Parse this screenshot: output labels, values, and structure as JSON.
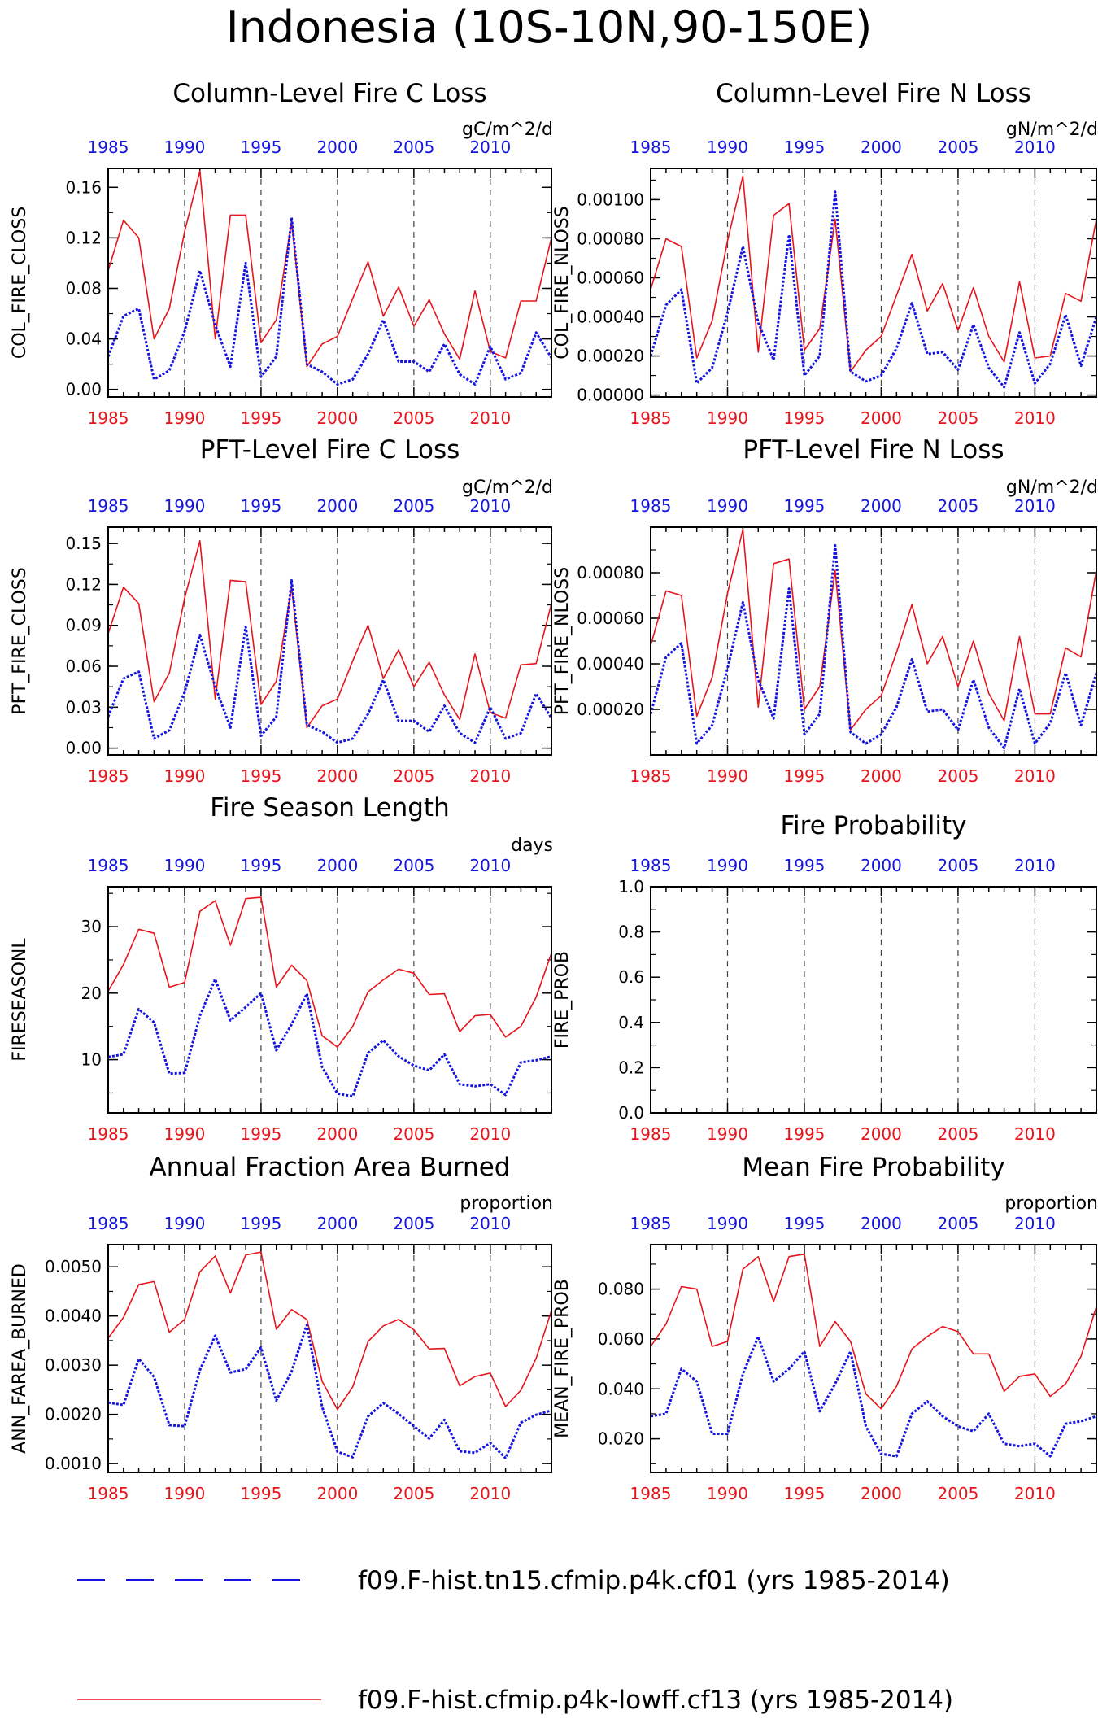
{
  "title": "Indonesia (10S-10N,90-150E)",
  "colors": {
    "red": "#e8141b",
    "blue": "#1515e0",
    "axis": "#000000",
    "grid": "#444444"
  },
  "legend": [
    {
      "label": "f09.F-hist.tn15.cfmip.p4k.cf01 (yrs 1985-2014)",
      "color": "#1515e0",
      "style": "dashed"
    },
    {
      "label": "f09.F-hist.cfmip.p4k-lowff.cf13 (yrs 1985-2014)",
      "color": "#e8141b",
      "style": "solid"
    }
  ],
  "chart_data": [
    {
      "type": "line",
      "title": "Column-Level Fire C Loss",
      "ylabel": "COL_FIRE_CLOSS",
      "units": "gC/m^2/d",
      "xlim": [
        1985,
        2014
      ],
      "xticks": [
        1985,
        1990,
        1995,
        2000,
        2005,
        2010
      ],
      "ylim": [
        -0.006,
        0.175
      ],
      "yticks": [
        "0.00",
        "0.04",
        "0.08",
        "0.12",
        "0.16"
      ],
      "ytick_values": [
        0.0,
        0.04,
        0.08,
        0.12,
        0.16
      ],
      "x": [
        1985,
        1986,
        1987,
        1988,
        1989,
        1990,
        1991,
        1992,
        1993,
        1994,
        1995,
        1996,
        1997,
        1998,
        1999,
        2000,
        2001,
        2002,
        2003,
        2004,
        2005,
        2006,
        2007,
        2008,
        2009,
        2010,
        2011,
        2012,
        2013,
        2014
      ],
      "series": [
        {
          "color": "red",
          "style": "solid",
          "values": [
            0.094,
            0.134,
            0.12,
            0.04,
            0.064,
            0.125,
            0.173,
            0.04,
            0.138,
            0.138,
            0.037,
            0.055,
            0.133,
            0.018,
            0.036,
            0.042,
            0.072,
            0.101,
            0.058,
            0.081,
            0.05,
            0.071,
            0.044,
            0.024,
            0.078,
            0.03,
            0.025,
            0.07,
            0.07,
            0.12
          ]
        },
        {
          "color": "blue",
          "style": "dashed",
          "values": [
            0.026,
            0.058,
            0.064,
            0.008,
            0.015,
            0.046,
            0.094,
            0.051,
            0.018,
            0.1,
            0.01,
            0.026,
            0.136,
            0.02,
            0.014,
            0.004,
            0.008,
            0.028,
            0.055,
            0.022,
            0.022,
            0.014,
            0.036,
            0.012,
            0.004,
            0.034,
            0.008,
            0.013,
            0.045,
            0.025
          ]
        }
      ]
    },
    {
      "type": "line",
      "title": "Column-Level Fire N Loss",
      "ylabel": "COL_FIRE_NLOSS",
      "units": "gN/m^2/d",
      "xlim": [
        1985,
        2014
      ],
      "xticks": [
        1985,
        1990,
        1995,
        2000,
        2005,
        2010
      ],
      "ylim": [
        -1e-05,
        0.00116
      ],
      "yticks": [
        "0.00000",
        "0.00020",
        "0.00040",
        "0.00060",
        "0.00080",
        "0.00100"
      ],
      "ytick_values": [
        0.0,
        0.0002,
        0.0004,
        0.0006,
        0.0008,
        0.001
      ],
      "x": [
        1985,
        1986,
        1987,
        1988,
        1989,
        1990,
        1991,
        1992,
        1993,
        1994,
        1995,
        1996,
        1997,
        1998,
        1999,
        2000,
        2001,
        2002,
        2003,
        2004,
        2005,
        2006,
        2007,
        2008,
        2009,
        2010,
        2011,
        2012,
        2013,
        2014
      ],
      "series": [
        {
          "color": "red",
          "style": "solid",
          "values": [
            0.00054,
            0.0008,
            0.00076,
            0.00019,
            0.00038,
            0.00079,
            0.00112,
            0.00022,
            0.00092,
            0.00098,
            0.00023,
            0.00034,
            0.0009,
            0.00012,
            0.00023,
            0.0003,
            0.00051,
            0.00072,
            0.00043,
            0.00057,
            0.00033,
            0.00055,
            0.0003,
            0.00017,
            0.00058,
            0.00019,
            0.0002,
            0.00052,
            0.00048,
            0.0009
          ]
        },
        {
          "color": "blue",
          "style": "dashed",
          "values": [
            0.0002,
            0.00046,
            0.00054,
            6e-05,
            0.00014,
            0.00042,
            0.00076,
            0.00037,
            0.00018,
            0.00082,
            0.0001,
            0.0002,
            0.00104,
            0.00012,
            7e-05,
            0.0001,
            0.00024,
            0.00047,
            0.00021,
            0.00022,
            0.00013,
            0.00036,
            0.00014,
            4e-05,
            0.00032,
            6e-05,
            0.00016,
            0.00041,
            0.00015,
            0.0004
          ]
        }
      ]
    },
    {
      "type": "line",
      "title": "PFT-Level Fire C Loss",
      "ylabel": "PFT_FIRE_CLOSS",
      "units": "gC/m^2/d",
      "xlim": [
        1985,
        2014
      ],
      "xticks": [
        1985,
        1990,
        1995,
        2000,
        2005,
        2010
      ],
      "ylim": [
        -0.005,
        0.162
      ],
      "yticks": [
        "0.00",
        "0.03",
        "0.06",
        "0.09",
        "0.12",
        "0.15"
      ],
      "ytick_values": [
        0.0,
        0.03,
        0.06,
        0.09,
        0.12,
        0.15
      ],
      "x": [
        1985,
        1986,
        1987,
        1988,
        1989,
        1990,
        1991,
        1992,
        1993,
        1994,
        1995,
        1996,
        1997,
        1998,
        1999,
        2000,
        2001,
        2002,
        2003,
        2004,
        2005,
        2006,
        2007,
        2008,
        2009,
        2010,
        2011,
        2012,
        2013,
        2014
      ],
      "series": [
        {
          "color": "red",
          "style": "solid",
          "values": [
            0.084,
            0.118,
            0.106,
            0.034,
            0.055,
            0.11,
            0.152,
            0.036,
            0.123,
            0.122,
            0.032,
            0.049,
            0.118,
            0.015,
            0.031,
            0.036,
            0.064,
            0.09,
            0.051,
            0.072,
            0.045,
            0.063,
            0.039,
            0.021,
            0.069,
            0.026,
            0.022,
            0.061,
            0.062,
            0.106
          ]
        },
        {
          "color": "blue",
          "style": "dashed",
          "values": [
            0.023,
            0.051,
            0.056,
            0.007,
            0.013,
            0.041,
            0.083,
            0.045,
            0.015,
            0.089,
            0.009,
            0.023,
            0.123,
            0.017,
            0.012,
            0.004,
            0.007,
            0.025,
            0.05,
            0.02,
            0.02,
            0.012,
            0.031,
            0.011,
            0.004,
            0.03,
            0.007,
            0.011,
            0.04,
            0.022
          ]
        }
      ]
    },
    {
      "type": "line",
      "title": "PFT-Level Fire N Loss",
      "ylabel": "PFT_FIRE_NLOSS",
      "units": "gN/m^2/d",
      "xlim": [
        1985,
        2014
      ],
      "xticks": [
        1985,
        1990,
        1995,
        2000,
        2005,
        2010
      ],
      "ylim": [
        0.0,
        0.001
      ],
      "yticks": [
        "0.00020",
        "0.00040",
        "0.00060",
        "0.00080"
      ],
      "ytick_values": [
        0.0002,
        0.0004,
        0.0006,
        0.0008
      ],
      "x": [
        1985,
        1986,
        1987,
        1988,
        1989,
        1990,
        1991,
        1992,
        1993,
        1994,
        1995,
        1996,
        1997,
        1998,
        1999,
        2000,
        2001,
        2002,
        2003,
        2004,
        2005,
        2006,
        2007,
        2008,
        2009,
        2010,
        2011,
        2012,
        2013,
        2014
      ],
      "series": [
        {
          "color": "red",
          "style": "solid",
          "values": [
            0.00048,
            0.00072,
            0.0007,
            0.00017,
            0.00034,
            0.00071,
            0.00099,
            0.00021,
            0.00084,
            0.00086,
            0.0002,
            0.0003,
            0.00081,
            0.00011,
            0.0002,
            0.00026,
            0.00045,
            0.00066,
            0.0004,
            0.00052,
            0.0003,
            0.0005,
            0.00027,
            0.00015,
            0.00052,
            0.00018,
            0.00018,
            0.00047,
            0.00043,
            0.00081
          ]
        },
        {
          "color": "blue",
          "style": "dashed",
          "values": [
            0.00018,
            0.00043,
            0.00049,
            5e-05,
            0.00013,
            0.00038,
            0.00067,
            0.00033,
            0.00016,
            0.00073,
            9e-05,
            0.00018,
            0.00092,
            0.0001,
            5e-05,
            9e-05,
            0.00021,
            0.00042,
            0.00019,
            0.0002,
            0.00011,
            0.00033,
            0.00012,
            3e-05,
            0.00029,
            5e-05,
            0.00014,
            0.00036,
            0.00013,
            0.00036
          ]
        }
      ]
    },
    {
      "type": "line",
      "title": "Fire Season Length",
      "ylabel": "FIRESEASONL",
      "units": "days",
      "xlim": [
        1985,
        2014
      ],
      "xticks": [
        1985,
        1990,
        1995,
        2000,
        2005,
        2010
      ],
      "ylim": [
        2.0,
        36.0
      ],
      "yticks": [
        "10",
        "20",
        "30"
      ],
      "ytick_values": [
        10,
        20,
        30
      ],
      "x": [
        1985,
        1986,
        1987,
        1988,
        1989,
        1990,
        1991,
        1992,
        1993,
        1994,
        1995,
        1996,
        1997,
        1998,
        1999,
        2000,
        2001,
        2002,
        2003,
        2004,
        2005,
        2006,
        2007,
        2008,
        2009,
        2010,
        2011,
        2012,
        2013,
        2014
      ],
      "series": [
        {
          "color": "red",
          "style": "solid",
          "values": [
            20.3,
            24.3,
            29.6,
            29.0,
            20.9,
            21.6,
            32.3,
            33.9,
            27.2,
            34.2,
            34.4,
            20.9,
            24.2,
            21.9,
            13.6,
            11.9,
            15.0,
            20.2,
            22.0,
            23.6,
            23.0,
            19.8,
            19.9,
            14.2,
            16.6,
            16.8,
            13.4,
            15.0,
            19.4,
            26.0
          ]
        },
        {
          "color": "blue",
          "style": "dashed",
          "values": [
            10.4,
            10.8,
            17.6,
            15.6,
            7.9,
            8.0,
            16.6,
            22.1,
            15.9,
            17.9,
            20.0,
            11.4,
            15.3,
            19.9,
            8.9,
            4.9,
            4.5,
            11.0,
            12.9,
            10.5,
            9.1,
            8.4,
            10.8,
            6.3,
            6.0,
            6.3,
            4.7,
            9.6,
            9.9,
            10.5
          ]
        }
      ]
    },
    {
      "type": "line",
      "title": "Fire Probability",
      "ylabel": "FIRE_PROB",
      "units": "",
      "xlim": [
        1985,
        2014
      ],
      "xticks": [
        1985,
        1990,
        1995,
        2000,
        2005,
        2010
      ],
      "ylim": [
        0.0,
        1.0
      ],
      "yticks": [
        "0.0",
        "0.2",
        "0.4",
        "0.6",
        "0.8",
        "1.0"
      ],
      "ytick_values": [
        0.0,
        0.2,
        0.4,
        0.6,
        0.8,
        1.0
      ],
      "x": [],
      "series": []
    },
    {
      "type": "line",
      "title": "Annual Fraction Area Burned",
      "ylabel": "ANN_FAREA_BURNED",
      "units": "proportion",
      "xlim": [
        1985,
        2014
      ],
      "xticks": [
        1985,
        1990,
        1995,
        2000,
        2005,
        2010
      ],
      "ylim": [
        0.00082,
        0.00545
      ],
      "yticks": [
        "0.0010",
        "0.0020",
        "0.0030",
        "0.0040",
        "0.0050"
      ],
      "ytick_values": [
        0.001,
        0.002,
        0.003,
        0.004,
        0.005
      ],
      "x": [
        1985,
        1986,
        1987,
        1988,
        1989,
        1990,
        1991,
        1992,
        1993,
        1994,
        1995,
        1996,
        1997,
        1998,
        1999,
        2000,
        2001,
        2002,
        2003,
        2004,
        2005,
        2006,
        2007,
        2008,
        2009,
        2010,
        2011,
        2012,
        2013,
        2014
      ],
      "series": [
        {
          "color": "red",
          "style": "solid",
          "values": [
            0.00355,
            0.00397,
            0.00464,
            0.0047,
            0.00367,
            0.00393,
            0.0049,
            0.00522,
            0.00447,
            0.00524,
            0.0053,
            0.00373,
            0.00413,
            0.00393,
            0.00267,
            0.0021,
            0.00256,
            0.00348,
            0.0038,
            0.00393,
            0.00372,
            0.00333,
            0.00334,
            0.00258,
            0.00277,
            0.00284,
            0.00216,
            0.00249,
            0.00314,
            0.00411
          ]
        },
        {
          "color": "blue",
          "style": "dashed",
          "values": [
            0.00224,
            0.00219,
            0.00313,
            0.00276,
            0.00178,
            0.00176,
            0.0029,
            0.0036,
            0.00285,
            0.00292,
            0.00336,
            0.00228,
            0.00287,
            0.00382,
            0.00215,
            0.00124,
            0.00113,
            0.00196,
            0.00223,
            0.00201,
            0.00176,
            0.00151,
            0.00189,
            0.00125,
            0.00122,
            0.00142,
            0.00111,
            0.00183,
            0.00199,
            0.00208
          ]
        }
      ]
    },
    {
      "type": "line",
      "title": "Mean Fire Probability",
      "ylabel": "MEAN_FIRE_PROB",
      "units": "proportion",
      "xlim": [
        1985,
        2014
      ],
      "xticks": [
        1985,
        1990,
        1995,
        2000,
        2005,
        2010
      ],
      "ylim": [
        0.0065,
        0.0978
      ],
      "yticks": [
        "0.020",
        "0.040",
        "0.060",
        "0.080"
      ],
      "ytick_values": [
        0.02,
        0.04,
        0.06,
        0.08
      ],
      "x": [
        1985,
        1986,
        1987,
        1988,
        1989,
        1990,
        1991,
        1992,
        1993,
        1994,
        1995,
        1996,
        1997,
        1998,
        1999,
        2000,
        2001,
        2002,
        2003,
        2004,
        2005,
        2006,
        2007,
        2008,
        2009,
        2010,
        2011,
        2012,
        2013,
        2014
      ],
      "series": [
        {
          "color": "red",
          "style": "solid",
          "values": [
            0.057,
            0.066,
            0.081,
            0.08,
            0.057,
            0.059,
            0.088,
            0.093,
            0.075,
            0.093,
            0.094,
            0.057,
            0.067,
            0.059,
            0.038,
            0.032,
            0.041,
            0.056,
            0.061,
            0.065,
            0.063,
            0.054,
            0.054,
            0.039,
            0.045,
            0.046,
            0.037,
            0.042,
            0.053,
            0.073
          ]
        },
        {
          "color": "blue",
          "style": "dashed",
          "values": [
            0.029,
            0.03,
            0.048,
            0.043,
            0.022,
            0.022,
            0.046,
            0.061,
            0.043,
            0.048,
            0.055,
            0.031,
            0.042,
            0.055,
            0.025,
            0.014,
            0.013,
            0.03,
            0.035,
            0.029,
            0.025,
            0.023,
            0.03,
            0.018,
            0.017,
            0.018,
            0.013,
            0.026,
            0.027,
            0.029
          ]
        }
      ]
    }
  ]
}
